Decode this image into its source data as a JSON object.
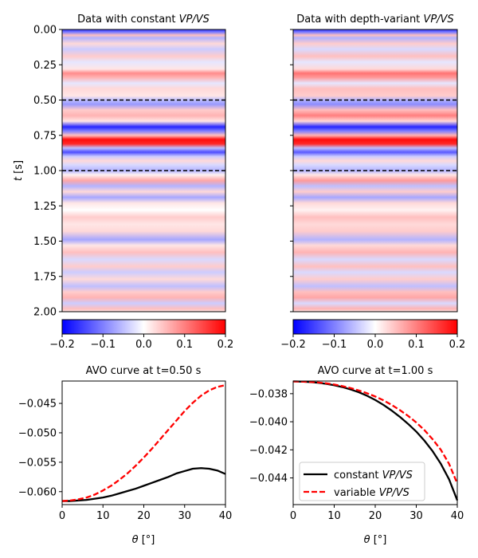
{
  "chart_data": [
    {
      "type": "heatmap",
      "title_prefix": "Data with constant ",
      "title_italic": "VP/VS",
      "ylabel": "t [s]",
      "ylabel_italic": "t",
      "ylabel_rest": " [s]",
      "ylim": [
        2.0,
        0.0
      ],
      "yticks": [
        "0.00",
        "0.25",
        "0.50",
        "0.75",
        "1.00",
        "1.25",
        "1.50",
        "1.75",
        "2.00"
      ],
      "ytick_values": [
        0.0,
        0.25,
        0.5,
        0.75,
        1.0,
        1.25,
        1.5,
        1.75,
        2.0
      ],
      "xlim": [
        0,
        40
      ],
      "colormap": "bwr",
      "clim": [
        -0.2,
        0.2
      ],
      "colorbar_ticks": [
        "−0.2",
        "−0.1",
        "0.0",
        "0.1",
        "0.2"
      ],
      "colorbar_values": [
        -0.2,
        -0.1,
        0.0,
        0.1,
        0.2
      ],
      "hlines": [
        0.5,
        1.0
      ],
      "rows": [
        {
          "t": 0.0,
          "v": -0.16
        },
        {
          "t": 0.02,
          "v": -0.1
        },
        {
          "t": 0.04,
          "v": 0.05
        },
        {
          "t": 0.06,
          "v": -0.06
        },
        {
          "t": 0.1,
          "v": 0.03
        },
        {
          "t": 0.14,
          "v": -0.04
        },
        {
          "t": 0.19,
          "v": 0.04
        },
        {
          "t": 0.23,
          "v": -0.02
        },
        {
          "t": 0.28,
          "v": 0.02
        },
        {
          "t": 0.31,
          "v": 0.09
        },
        {
          "t": 0.34,
          "v": 0.06
        },
        {
          "t": 0.38,
          "v": -0.02
        },
        {
          "t": 0.42,
          "v": 0.03
        },
        {
          "t": 0.47,
          "v": 0.02
        },
        {
          "t": 0.5,
          "v": -0.05
        },
        {
          "t": 0.53,
          "v": -0.08
        },
        {
          "t": 0.57,
          "v": 0.04
        },
        {
          "t": 0.61,
          "v": 0.06
        },
        {
          "t": 0.65,
          "v": 0.02
        },
        {
          "t": 0.69,
          "v": -0.17
        },
        {
          "t": 0.72,
          "v": -0.1
        },
        {
          "t": 0.75,
          "v": 0.05
        },
        {
          "t": 0.78,
          "v": 0.19
        },
        {
          "t": 0.81,
          "v": 0.17
        },
        {
          "t": 0.84,
          "v": -0.05
        },
        {
          "t": 0.87,
          "v": -0.14
        },
        {
          "t": 0.9,
          "v": -0.04
        },
        {
          "t": 0.93,
          "v": 0.03
        },
        {
          "t": 0.96,
          "v": -0.03
        },
        {
          "t": 1.0,
          "v": -0.06
        },
        {
          "t": 1.03,
          "v": 0.01
        },
        {
          "t": 1.07,
          "v": 0.07
        },
        {
          "t": 1.11,
          "v": -0.06
        },
        {
          "t": 1.15,
          "v": 0.03
        },
        {
          "t": 1.19,
          "v": -0.07
        },
        {
          "t": 1.23,
          "v": 0.02
        },
        {
          "t": 1.28,
          "v": 0.0
        },
        {
          "t": 1.33,
          "v": 0.04
        },
        {
          "t": 1.38,
          "v": 0.02
        },
        {
          "t": 1.43,
          "v": 0.03
        },
        {
          "t": 1.49,
          "v": -0.07
        },
        {
          "t": 1.53,
          "v": 0.02
        },
        {
          "t": 1.58,
          "v": 0.05
        },
        {
          "t": 1.63,
          "v": -0.03
        },
        {
          "t": 1.68,
          "v": 0.04
        },
        {
          "t": 1.72,
          "v": -0.04
        },
        {
          "t": 1.77,
          "v": 0.03
        },
        {
          "t": 1.82,
          "v": -0.05
        },
        {
          "t": 1.86,
          "v": 0.04
        },
        {
          "t": 1.9,
          "v": 0.06
        },
        {
          "t": 1.94,
          "v": -0.04
        },
        {
          "t": 1.98,
          "v": 0.05
        },
        {
          "t": 2.0,
          "v": 0.02
        }
      ]
    },
    {
      "type": "heatmap",
      "title_prefix": "Data with depth-variant ",
      "title_italic": "VP/VS",
      "ylim": [
        2.0,
        0.0
      ],
      "xlim": [
        0,
        40
      ],
      "colormap": "bwr",
      "clim": [
        -0.2,
        0.2
      ],
      "colorbar_ticks": [
        "−0.2",
        "−0.1",
        "0.0",
        "0.1",
        "0.2"
      ],
      "colorbar_values": [
        -0.2,
        -0.1,
        0.0,
        0.1,
        0.2
      ],
      "hlines": [
        0.5,
        1.0
      ],
      "rows": [
        {
          "t": 0.0,
          "v": -0.16
        },
        {
          "t": 0.02,
          "v": -0.1
        },
        {
          "t": 0.04,
          "v": 0.05
        },
        {
          "t": 0.06,
          "v": -0.06
        },
        {
          "t": 0.1,
          "v": 0.04
        },
        {
          "t": 0.14,
          "v": -0.03
        },
        {
          "t": 0.19,
          "v": 0.05
        },
        {
          "t": 0.23,
          "v": -0.02
        },
        {
          "t": 0.28,
          "v": 0.03
        },
        {
          "t": 0.31,
          "v": 0.11
        },
        {
          "t": 0.34,
          "v": 0.08
        },
        {
          "t": 0.38,
          "v": -0.02
        },
        {
          "t": 0.42,
          "v": 0.05
        },
        {
          "t": 0.47,
          "v": 0.04
        },
        {
          "t": 0.5,
          "v": -0.06
        },
        {
          "t": 0.53,
          "v": -0.09
        },
        {
          "t": 0.57,
          "v": 0.05
        },
        {
          "t": 0.61,
          "v": 0.1
        },
        {
          "t": 0.65,
          "v": 0.03
        },
        {
          "t": 0.69,
          "v": -0.17
        },
        {
          "t": 0.72,
          "v": -0.1
        },
        {
          "t": 0.75,
          "v": 0.06
        },
        {
          "t": 0.78,
          "v": 0.19
        },
        {
          "t": 0.81,
          "v": 0.17
        },
        {
          "t": 0.84,
          "v": -0.05
        },
        {
          "t": 0.87,
          "v": -0.13
        },
        {
          "t": 0.9,
          "v": -0.04
        },
        {
          "t": 0.93,
          "v": 0.03
        },
        {
          "t": 0.96,
          "v": -0.03
        },
        {
          "t": 1.0,
          "v": -0.06
        },
        {
          "t": 1.03,
          "v": 0.02
        },
        {
          "t": 1.07,
          "v": 0.08
        },
        {
          "t": 1.11,
          "v": -0.05
        },
        {
          "t": 1.15,
          "v": 0.04
        },
        {
          "t": 1.19,
          "v": -0.07
        },
        {
          "t": 1.23,
          "v": 0.03
        },
        {
          "t": 1.28,
          "v": 0.01
        },
        {
          "t": 1.33,
          "v": 0.05
        },
        {
          "t": 1.38,
          "v": 0.03
        },
        {
          "t": 1.43,
          "v": 0.04
        },
        {
          "t": 1.49,
          "v": -0.06
        },
        {
          "t": 1.53,
          "v": 0.03
        },
        {
          "t": 1.58,
          "v": 0.06
        },
        {
          "t": 1.63,
          "v": -0.03
        },
        {
          "t": 1.68,
          "v": 0.05
        },
        {
          "t": 1.72,
          "v": -0.03
        },
        {
          "t": 1.77,
          "v": 0.04
        },
        {
          "t": 1.82,
          "v": -0.05
        },
        {
          "t": 1.86,
          "v": 0.05
        },
        {
          "t": 1.9,
          "v": 0.07
        },
        {
          "t": 1.94,
          "v": -0.03
        },
        {
          "t": 1.98,
          "v": 0.06
        },
        {
          "t": 2.0,
          "v": 0.02
        }
      ]
    },
    {
      "type": "line",
      "title": "AVO curve at t=0.50 s",
      "xlabel": "θ [°]",
      "xlabel_italic": "θ",
      "xlabel_rest": " [°]",
      "xlim": [
        0,
        40
      ],
      "ylim": [
        -0.0622,
        -0.0412
      ],
      "xticks": [
        0,
        10,
        20,
        30,
        40
      ],
      "yticks": [
        -0.06,
        -0.055,
        -0.05,
        -0.045
      ],
      "ytick_labels": [
        "−0.060",
        "−0.055",
        "−0.050",
        "−0.045"
      ],
      "series": [
        {
          "color": "#000000",
          "dash": "solid",
          "x": [
            0,
            2,
            4,
            6,
            8,
            10,
            12,
            14,
            16,
            18,
            20,
            22,
            24,
            26,
            28,
            30,
            32,
            34,
            36,
            38,
            40
          ],
          "y": [
            -0.0616,
            -0.0616,
            -0.0615,
            -0.0614,
            -0.0612,
            -0.061,
            -0.0607,
            -0.0603,
            -0.0599,
            -0.0595,
            -0.059,
            -0.0585,
            -0.058,
            -0.0575,
            -0.0569,
            -0.0565,
            -0.0561,
            -0.056,
            -0.0561,
            -0.0564,
            -0.057
          ]
        },
        {
          "color": "#ff0000",
          "dash": "dashed",
          "x": [
            0,
            2,
            4,
            6,
            8,
            10,
            12,
            14,
            16,
            18,
            20,
            22,
            24,
            26,
            28,
            30,
            32,
            34,
            36,
            38,
            40
          ],
          "y": [
            -0.0616,
            -0.0615,
            -0.0613,
            -0.061,
            -0.0605,
            -0.0598,
            -0.059,
            -0.058,
            -0.0569,
            -0.0556,
            -0.0542,
            -0.0527,
            -0.0511,
            -0.0495,
            -0.0479,
            -0.0463,
            -0.0449,
            -0.0437,
            -0.0428,
            -0.0422,
            -0.0419
          ]
        }
      ]
    },
    {
      "type": "line",
      "title": "AVO curve at t=1.00 s",
      "xlabel": "θ [°]",
      "xlabel_italic": "θ",
      "xlabel_rest": " [°]",
      "xlim": [
        0,
        40
      ],
      "ylim": [
        -0.0459,
        -0.0371
      ],
      "xticks": [
        0,
        10,
        20,
        30,
        40
      ],
      "yticks": [
        -0.038,
        -0.04,
        -0.042,
        -0.044
      ],
      "ytick_labels": [
        "−0.038",
        "−0.040",
        "−0.042",
        "−0.044"
      ],
      "legend_position": "lower-left",
      "series": [
        {
          "name_prefix": "constant ",
          "name_italic": "VP/VS",
          "color": "#000000",
          "dash": "solid",
          "x": [
            0,
            2,
            4,
            6,
            8,
            10,
            12,
            14,
            16,
            18,
            20,
            22,
            24,
            26,
            28,
            30,
            32,
            34,
            36,
            38,
            40
          ],
          "y": [
            -0.03713,
            -0.03714,
            -0.03717,
            -0.03722,
            -0.0373,
            -0.0374,
            -0.03753,
            -0.0377,
            -0.0379,
            -0.03815,
            -0.03845,
            -0.0388,
            -0.0392,
            -0.03965,
            -0.04015,
            -0.0407,
            -0.04135,
            -0.0421,
            -0.043,
            -0.0441,
            -0.0456
          ]
        },
        {
          "name_prefix": "variable ",
          "name_italic": "VP/VS",
          "color": "#ff0000",
          "dash": "dashed",
          "x": [
            0,
            2,
            4,
            6,
            8,
            10,
            12,
            14,
            16,
            18,
            20,
            22,
            24,
            26,
            28,
            30,
            32,
            34,
            36,
            38,
            40
          ],
          "y": [
            -0.03713,
            -0.03714,
            -0.03716,
            -0.0372,
            -0.03726,
            -0.03735,
            -0.03746,
            -0.0376,
            -0.03777,
            -0.03797,
            -0.0382,
            -0.03847,
            -0.0388,
            -0.03917,
            -0.03958,
            -0.04005,
            -0.0406,
            -0.04125,
            -0.042,
            -0.043,
            -0.0444
          ]
        }
      ]
    }
  ]
}
